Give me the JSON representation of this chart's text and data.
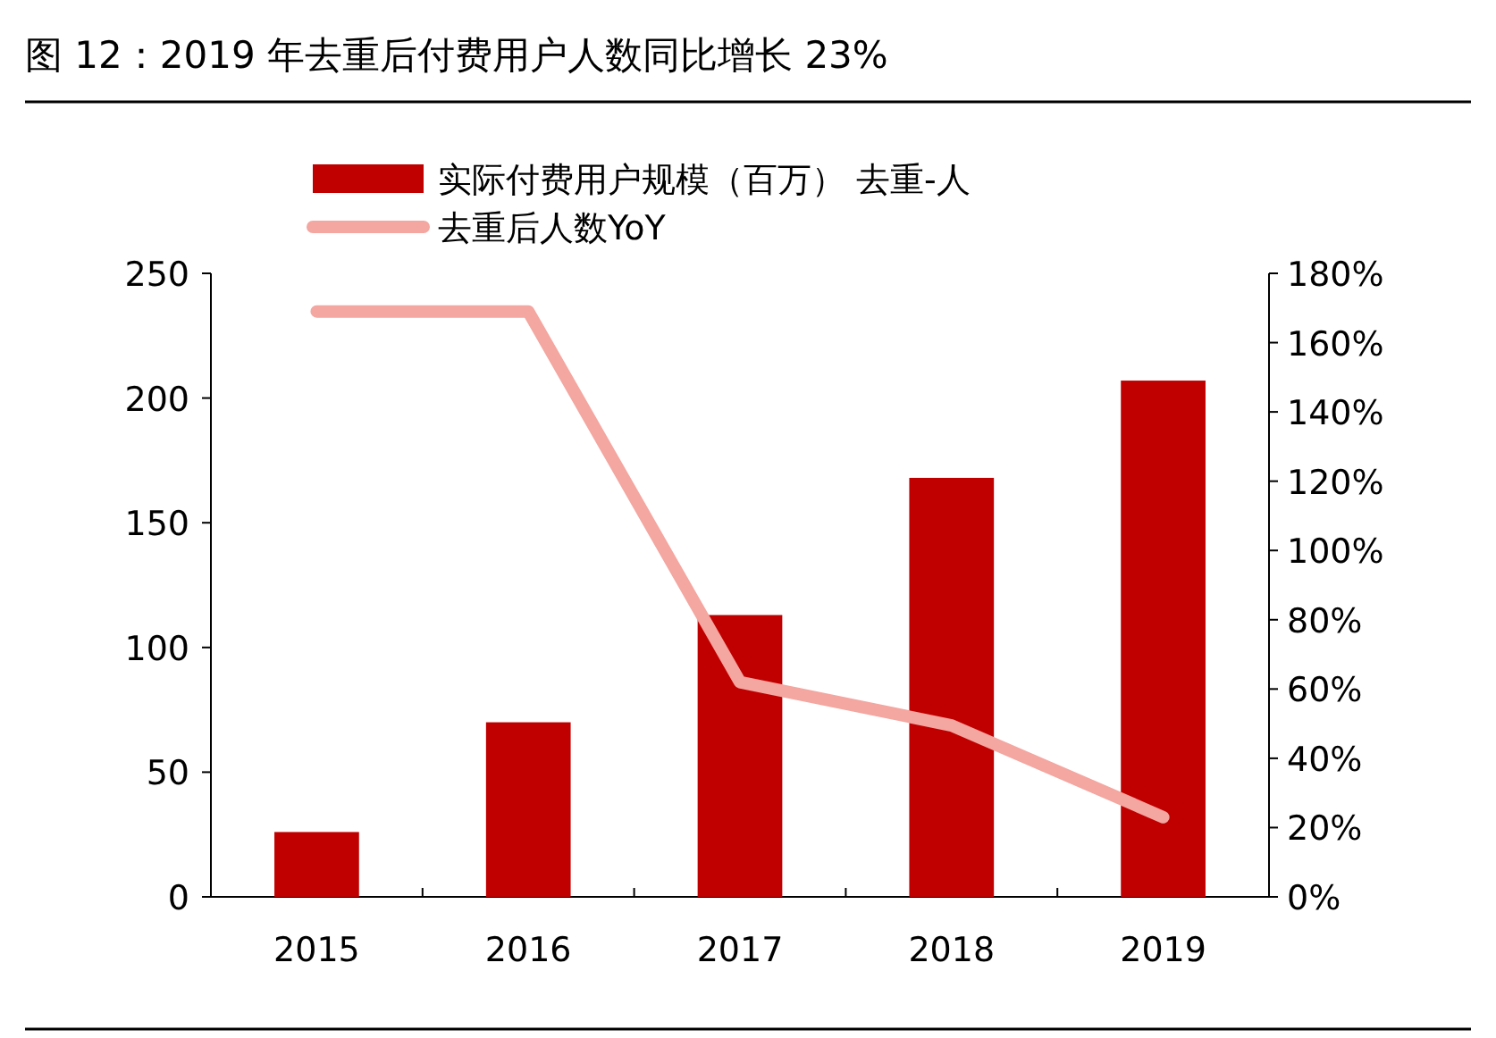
{
  "chart_data": {
    "type": "bar",
    "title": "图 12：2019 年去重后付费用户人数同比增长 23%",
    "categories": [
      "2015",
      "2016",
      "2017",
      "2018",
      "2019"
    ],
    "series": [
      {
        "name": "实际付费用户规模（百万） 去重-人",
        "color": "#c00000",
        "values": [
          26,
          70,
          113,
          168,
          207
        ]
      },
      {
        "name": "去重后人数YoY",
        "type": "line",
        "axis": "y2",
        "color": "#f4a6a0",
        "values": [
          169,
          169,
          62,
          49.5,
          23
        ]
      }
    ],
    "ylim": [
      0,
      250
    ],
    "yticks": [
      0,
      50,
      100,
      150,
      200,
      250
    ],
    "y2lim": [
      0,
      180
    ],
    "y2ticks": [
      {
        "value": 0,
        "label": "0%"
      },
      {
        "value": 20,
        "label": "20%"
      },
      {
        "value": 40,
        "label": "40%"
      },
      {
        "value": 60,
        "label": "60%"
      },
      {
        "value": 80,
        "label": "80%"
      },
      {
        "value": 100,
        "label": "100%"
      },
      {
        "value": 120,
        "label": "120%"
      },
      {
        "value": 140,
        "label": "140%"
      },
      {
        "value": 160,
        "label": "160%"
      },
      {
        "value": 180,
        "label": "180%"
      }
    ],
    "grid": false,
    "legend": "top"
  }
}
